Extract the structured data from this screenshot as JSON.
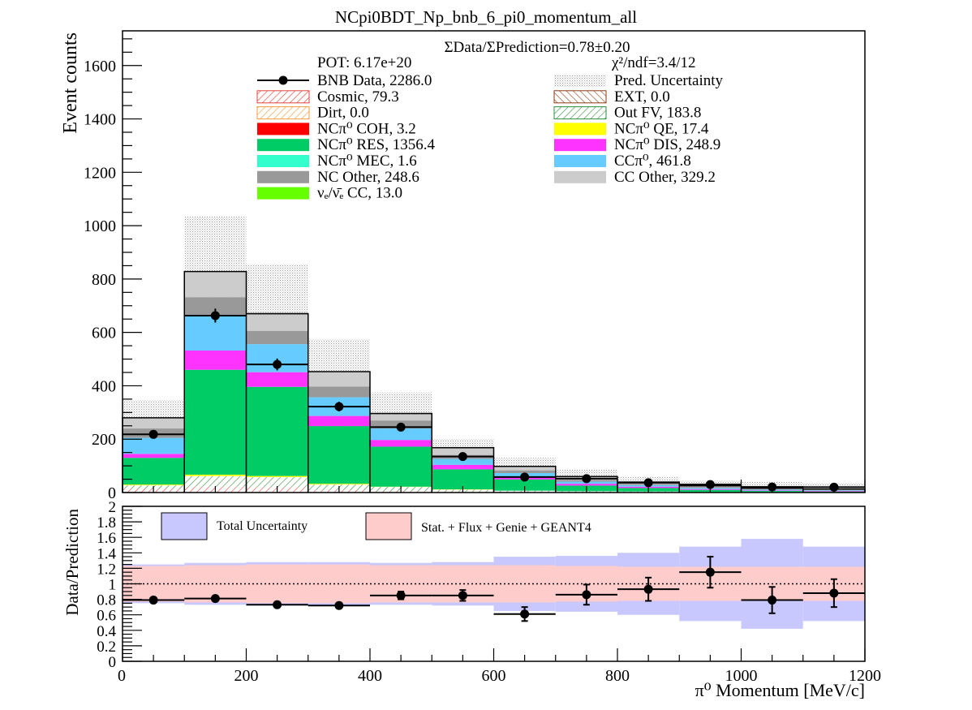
{
  "chart_data": [
    {
      "type": "bar",
      "title": "NCpi0BDT_Np_bnb_6_pi0_momentum_all",
      "ylabel": "Event counts",
      "xlim": [
        0,
        1200
      ],
      "ylim": [
        0,
        1730
      ],
      "y_ticks": [
        0,
        200,
        400,
        600,
        800,
        1000,
        1200,
        1400,
        1600
      ],
      "x_edges": [
        0,
        100,
        200,
        300,
        400,
        500,
        600,
        700,
        800,
        900,
        1000,
        1100,
        1200
      ],
      "info": {
        "ratio_text": "ΣData/ΣPrediction=0.78±0.20",
        "pot": "POT: 6.17e+20",
        "chi2": "χ²/ndf=3.4/12"
      },
      "legend": [
        {
          "key": "data",
          "label": "BNB Data, 2286.0",
          "style": "marker",
          "color": "#000000"
        },
        {
          "key": "uncert",
          "label": "Pred. Uncertainty",
          "style": "dots",
          "color": "#bdbdbd"
        },
        {
          "key": "cosmic",
          "label": "Cosmic, 79.3",
          "style": "hatch",
          "color": "#e8403a"
        },
        {
          "key": "ext",
          "label": "EXT, 0.0",
          "style": "hatch2",
          "color": "#8b3a12"
        },
        {
          "key": "dirt",
          "label": "Dirt, 0.0",
          "style": "hatch",
          "color": "#f39b3c"
        },
        {
          "key": "outfv",
          "label": "Out FV, 183.8",
          "style": "hatch",
          "color": "#2f8f3a"
        },
        {
          "key": "nccoh",
          "label": "NCπ⁰ COH,  3.2",
          "style": "fill",
          "color": "#ff0000"
        },
        {
          "key": "ncqe",
          "label": "NCπ⁰ QE,  17.4",
          "style": "fill",
          "color": "#ffff00"
        },
        {
          "key": "ncres",
          "label": "NCπ⁰ RES,  1356.4",
          "style": "fill",
          "color": "#00cc66"
        },
        {
          "key": "ncdis",
          "label": "NCπ⁰ DIS,  248.9",
          "style": "fill",
          "color": "#ff33ff"
        },
        {
          "key": "ncmec",
          "label": "NCπ⁰ MEC,  1.6",
          "style": "fill",
          "color": "#33ffcc"
        },
        {
          "key": "ccpi0",
          "label": "CCπ⁰, 461.8",
          "style": "fill",
          "color": "#66ccff"
        },
        {
          "key": "ncother",
          "label": "NC Other, 248.6",
          "style": "fill",
          "color": "#999999"
        },
        {
          "key": "ccother",
          "label": "CC Other, 329.2",
          "style": "fill",
          "color": "#cccccc"
        },
        {
          "key": "nue",
          "label": "νₑ/ν̄ₑ CC, 13.0",
          "style": "fill",
          "color": "#66ff00"
        }
      ],
      "series": [
        {
          "name": "Cosmic, 79.3",
          "values": [
            15,
            22,
            20,
            10,
            5,
            3,
            2,
            1,
            1,
            0,
            0,
            0
          ]
        },
        {
          "name": "Out FV, 183.8",
          "values": [
            12,
            40,
            38,
            20,
            16,
            8,
            5,
            4,
            3,
            2,
            2,
            1
          ]
        },
        {
          "name": "NCπ⁰ QE,  17.4",
          "values": [
            3,
            5,
            4,
            3,
            1,
            1,
            0,
            0,
            0,
            0,
            0,
            0
          ]
        },
        {
          "name": "NCπ⁰ RES,  1356.4",
          "values": [
            100,
            393,
            334,
            216,
            150,
            75,
            42,
            21,
            13,
            8,
            4,
            3
          ]
        },
        {
          "name": "NCπ⁰ DIS,  248.9",
          "values": [
            15,
            72,
            55,
            38,
            25,
            17,
            10,
            7,
            5,
            3,
            2,
            2
          ]
        },
        {
          "name": "CCπ⁰, 461.8",
          "values": [
            60,
            130,
            105,
            70,
            43,
            22,
            14,
            8,
            6,
            4,
            3,
            2
          ]
        },
        {
          "name": "NC Other, 248.6",
          "values": [
            35,
            70,
            50,
            40,
            30,
            15,
            10,
            7,
            5,
            4,
            2,
            2
          ]
        },
        {
          "name": "CC Other, 329.2",
          "values": [
            40,
            95,
            70,
            55,
            30,
            27,
            15,
            12,
            6,
            4,
            3,
            3
          ]
        }
      ],
      "prediction_total": [
        280,
        828,
        670,
        453,
        296,
        168,
        98,
        60,
        39,
        25,
        16,
        13
      ],
      "uncertainty_top": [
        345,
        1035,
        855,
        575,
        375,
        200,
        130,
        85,
        60,
        45,
        40,
        35
      ],
      "data_points": {
        "x": [
          50,
          150,
          250,
          350,
          450,
          550,
          650,
          750,
          850,
          950,
          1050,
          1150
        ],
        "y": [
          218,
          663,
          480,
          322,
          245,
          135,
          58,
          52,
          37,
          30,
          21,
          20
        ],
        "err": [
          15,
          26,
          22,
          18,
          16,
          12,
          8,
          7,
          6,
          6,
          5,
          5
        ]
      }
    },
    {
      "type": "bar",
      "ylabel": "Data/Prediction",
      "xlabel": "π⁰ Momentum [MeV/c]",
      "xlim": [
        0,
        1200
      ],
      "ylim": [
        0,
        2
      ],
      "y_ticks": [
        0,
        0.2,
        0.4,
        0.6,
        0.8,
        1,
        1.2,
        1.4,
        1.6,
        1.8,
        2
      ],
      "y_tick_labels": [
        "0",
        "0.2",
        "0.4",
        "0.6",
        "0.8",
        "1",
        "1.2",
        "1.4",
        "1.6",
        "1.8",
        "2"
      ],
      "x_ticks": [
        0,
        200,
        400,
        600,
        800,
        1000,
        1200
      ],
      "x_edges": [
        0,
        100,
        200,
        300,
        400,
        500,
        600,
        700,
        800,
        900,
        1000,
        1100,
        1200
      ],
      "legend": [
        {
          "label": "Total Uncertainty",
          "color": "#c8c8ff"
        },
        {
          "label": "Stat. + Flux + Genie + GEANT4",
          "color": "#ffcccc"
        }
      ],
      "total_band": {
        "low": [
          0.75,
          0.73,
          0.72,
          0.72,
          0.73,
          0.72,
          0.65,
          0.64,
          0.6,
          0.52,
          0.42,
          0.52
        ],
        "high": [
          1.25,
          1.27,
          1.28,
          1.28,
          1.27,
          1.28,
          1.35,
          1.36,
          1.4,
          1.48,
          1.58,
          1.48
        ]
      },
      "syst_band": {
        "low": [
          0.77,
          0.76,
          0.75,
          0.75,
          0.76,
          0.76,
          0.76,
          0.77,
          0.78,
          0.78,
          0.78,
          0.78
        ],
        "high": [
          1.23,
          1.24,
          1.25,
          1.25,
          1.24,
          1.24,
          1.24,
          1.23,
          1.22,
          1.22,
          1.22,
          1.22
        ]
      },
      "reference_line": 1,
      "ratio_points": {
        "x": [
          50,
          150,
          250,
          350,
          450,
          550,
          650,
          750,
          850,
          950,
          1050,
          1150
        ],
        "y": [
          0.79,
          0.81,
          0.73,
          0.72,
          0.85,
          0.85,
          0.61,
          0.86,
          0.93,
          1.15,
          0.79,
          0.88
        ],
        "err": [
          0.03,
          0.03,
          0.03,
          0.03,
          0.05,
          0.07,
          0.09,
          0.13,
          0.15,
          0.2,
          0.17,
          0.18
        ]
      }
    }
  ]
}
